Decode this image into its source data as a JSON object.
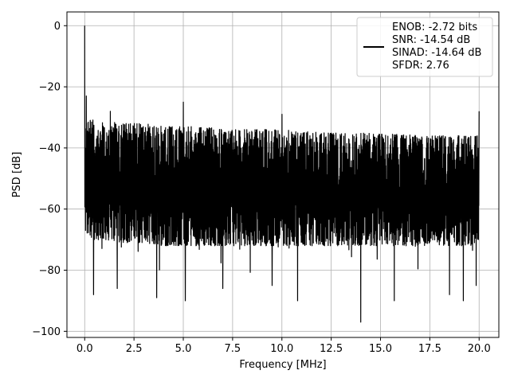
{
  "chart_data": {
    "type": "line",
    "xlabel": "Frequency [MHz]",
    "ylabel": "PSD [dB]",
    "xlim": [
      -0.9,
      21.0
    ],
    "ylim": [
      -102,
      4.5
    ],
    "xticks": [
      0.0,
      2.5,
      5.0,
      7.5,
      10.0,
      12.5,
      15.0,
      17.5,
      20.0
    ],
    "xtick_labels": [
      "0.0",
      "2.5",
      "5.0",
      "7.5",
      "10.0",
      "12.5",
      "15.0",
      "17.5",
      "20.0"
    ],
    "yticks": [
      0,
      -20,
      -40,
      -60,
      -80,
      -100
    ],
    "ytick_labels": [
      "0",
      "−20",
      "−40",
      "−60",
      "−80",
      "−100"
    ],
    "grid": true,
    "legend_position": "top-right",
    "legend": {
      "lines": [
        "ENOB: -2.72 bits",
        "SNR: -14.54 dB",
        "SINAD: -14.64 dB",
        "SFDR: 2.76"
      ]
    },
    "series": [
      {
        "color": "#000000",
        "envelope": {
          "x": [
            0.05,
            0.5,
            1.0,
            2.0,
            3.0,
            4.0,
            5.0,
            6.0,
            7.0,
            8.0,
            9.0,
            10.0,
            11.0,
            12.0,
            13.0,
            14.0,
            15.0,
            16.0,
            17.0,
            18.0,
            19.0,
            20.0
          ],
          "upper": [
            -30,
            -31,
            -31,
            -32,
            -32,
            -33,
            -33,
            -33,
            -34,
            -34,
            -34,
            -34,
            -34.5,
            -35,
            -35,
            -35,
            -35.5,
            -35.5,
            -36,
            -36,
            -36,
            -36
          ],
          "lower": [
            -68,
            -70,
            -70,
            -71,
            -71,
            -72,
            -72,
            -72,
            -72,
            -72,
            -72,
            -72,
            -72,
            -72,
            -72,
            -72,
            -72,
            -72,
            -72,
            -72,
            -72,
            -72
          ]
        },
        "spikes": [
          {
            "x": 0.0,
            "y": 0.0
          },
          {
            "x": 0.08,
            "y": -23
          },
          {
            "x": 1.3,
            "y": -28
          },
          {
            "x": 5.0,
            "y": -25
          },
          {
            "x": 10.0,
            "y": -29
          },
          {
            "x": 14.0,
            "y": -33
          },
          {
            "x": 20.0,
            "y": -28
          }
        ],
        "dips": [
          {
            "x": 0.45,
            "y": -88
          },
          {
            "x": 1.65,
            "y": -86
          },
          {
            "x": 3.65,
            "y": -89
          },
          {
            "x": 5.1,
            "y": -90
          },
          {
            "x": 7.0,
            "y": -86
          },
          {
            "x": 9.5,
            "y": -85
          },
          {
            "x": 10.8,
            "y": -90
          },
          {
            "x": 14.0,
            "y": -97
          },
          {
            "x": 15.7,
            "y": -90
          },
          {
            "x": 18.5,
            "y": -88
          },
          {
            "x": 19.2,
            "y": -90
          },
          {
            "x": 19.85,
            "y": -85
          }
        ]
      }
    ]
  }
}
